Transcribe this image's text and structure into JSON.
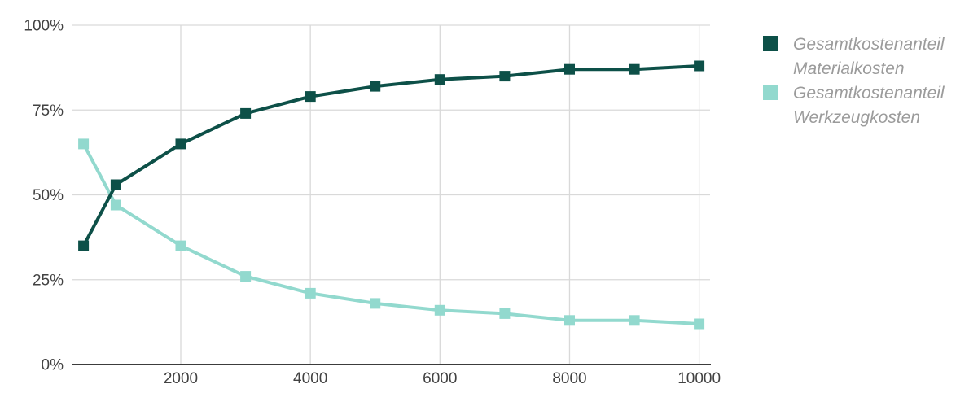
{
  "chart_data": {
    "type": "line",
    "title": "",
    "xlabel": "",
    "ylabel": "",
    "x": [
      500,
      1000,
      2000,
      3000,
      4000,
      5000,
      6000,
      7000,
      8000,
      9000,
      10000
    ],
    "series": [
      {
        "id": "materialkosten",
        "name": "Gesamtkostenanteil Materialkosten",
        "color": "#0D5048",
        "values": [
          35,
          53,
          65,
          74,
          79,
          82,
          84,
          85,
          87,
          87,
          88
        ]
      },
      {
        "id": "werkzeugkosten",
        "name": "Gesamtkostenanteil Werkzeugkosten",
        "color": "#92D9CE",
        "values": [
          65,
          47,
          35,
          26,
          21,
          18,
          16,
          15,
          13,
          13,
          12
        ]
      }
    ],
    "x_ticks": [
      {
        "value": 2000,
        "label": "2000"
      },
      {
        "value": 4000,
        "label": "4000"
      },
      {
        "value": 6000,
        "label": "6000"
      },
      {
        "value": 8000,
        "label": "8000"
      },
      {
        "value": 10000,
        "label": "10000"
      }
    ],
    "y_ticks": [
      {
        "value": 0,
        "label": "0%"
      },
      {
        "value": 25,
        "label": "25%"
      },
      {
        "value": 50,
        "label": "50%"
      },
      {
        "value": 75,
        "label": "75%"
      },
      {
        "value": 100,
        "label": "100%"
      }
    ],
    "xlim": [
      316,
      10168
    ],
    "ylim": [
      0,
      100
    ],
    "grid": true,
    "legend_position": "right",
    "marker": "square",
    "colors": {
      "grid": "#D9D9D9",
      "axis": "#3C3C3C",
      "tick_label": "#424242",
      "legend_text": "#9B9B9B"
    }
  }
}
